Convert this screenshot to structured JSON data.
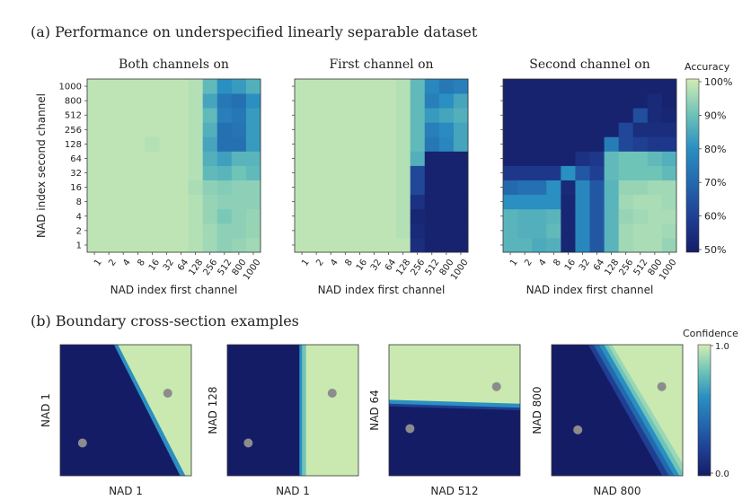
{
  "figure": {
    "panel_a_title": "(a) Performance on underspecified linearly separable dataset",
    "panel_b_title": "(b) Boundary cross-section examples"
  },
  "colors": {
    "low": "#151c66",
    "mid": "#2a8fc1",
    "high": "#c9e9b0",
    "dot": "#8c8c8c"
  },
  "chart_data": [
    {
      "type": "heatmap",
      "title": "Both channels on",
      "xlabel": "NAD index first channel",
      "ylabel": "NAD index second channel",
      "x": [
        "1",
        "2",
        "4",
        "8",
        "16",
        "32",
        "64",
        "128",
        "256",
        "512",
        "800",
        "1000"
      ],
      "y": [
        "1",
        "2",
        "4",
        "8",
        "16",
        "32",
        "64",
        "128",
        "256",
        "512",
        "800",
        "1000"
      ],
      "zlim": [
        50,
        100
      ],
      "z": [
        [
          98,
          98,
          98,
          98,
          98,
          98,
          98,
          97,
          95,
          93,
          94,
          95
        ],
        [
          98,
          98,
          98,
          98,
          98,
          98,
          98,
          97,
          95,
          93,
          93,
          94
        ],
        [
          98,
          98,
          98,
          98,
          98,
          98,
          98,
          97,
          94,
          91,
          93,
          94
        ],
        [
          98,
          98,
          98,
          98,
          98,
          98,
          98,
          97,
          94,
          93,
          93,
          93
        ],
        [
          98,
          98,
          98,
          98,
          98,
          98,
          98,
          96,
          93,
          92,
          93,
          93
        ],
        [
          98,
          98,
          98,
          98,
          98,
          98,
          98,
          97,
          88,
          87,
          90,
          88
        ],
        [
          98,
          98,
          98,
          98,
          98,
          98,
          98,
          97,
          86,
          83,
          87,
          87
        ],
        [
          98,
          98,
          98,
          98,
          97,
          98,
          98,
          97,
          84,
          72,
          72,
          82
        ],
        [
          98,
          98,
          98,
          98,
          98,
          98,
          98,
          97,
          86,
          72,
          73,
          82
        ],
        [
          98,
          98,
          98,
          98,
          98,
          98,
          98,
          97,
          88,
          76,
          74,
          82
        ],
        [
          98,
          98,
          98,
          98,
          98,
          98,
          98,
          97,
          84,
          74,
          72,
          80
        ],
        [
          98,
          98,
          98,
          98,
          98,
          98,
          98,
          97,
          88,
          80,
          82,
          86
        ]
      ],
      "colorbar": {
        "label": "Accuracy",
        "ticks": [
          "50%",
          "60%",
          "70%",
          "80%",
          "90%",
          "100%"
        ]
      }
    },
    {
      "type": "heatmap",
      "title": "First channel on",
      "xlabel": "NAD index first channel",
      "x": [
        "1",
        "2",
        "4",
        "8",
        "16",
        "32",
        "64",
        "128",
        "256",
        "512",
        "800",
        "1000"
      ],
      "y": [
        "1",
        "2",
        "4",
        "8",
        "16",
        "32",
        "64",
        "128",
        "256",
        "512",
        "800",
        "1000"
      ],
      "zlim": [
        50,
        100
      ],
      "z": [
        [
          98,
          98,
          98,
          98,
          98,
          98,
          98,
          98,
          55,
          52,
          52,
          52
        ],
        [
          98,
          98,
          98,
          98,
          98,
          98,
          98,
          97,
          54,
          52,
          52,
          52
        ],
        [
          98,
          98,
          98,
          98,
          98,
          98,
          98,
          97,
          53,
          52,
          52,
          52
        ],
        [
          98,
          98,
          98,
          98,
          98,
          98,
          98,
          97,
          56,
          52,
          52,
          52
        ],
        [
          98,
          98,
          98,
          98,
          98,
          98,
          98,
          97,
          62,
          52,
          52,
          52
        ],
        [
          98,
          98,
          98,
          98,
          98,
          98,
          98,
          97,
          62,
          52,
          52,
          52
        ],
        [
          98,
          98,
          98,
          98,
          98,
          98,
          98,
          97,
          86,
          52,
          52,
          52
        ],
        [
          98,
          98,
          98,
          98,
          98,
          98,
          98,
          97,
          88,
          74,
          78,
          84
        ],
        [
          98,
          98,
          98,
          98,
          98,
          98,
          98,
          97,
          88,
          76,
          79,
          84
        ],
        [
          98,
          98,
          98,
          98,
          98,
          98,
          98,
          97,
          88,
          82,
          84,
          86
        ],
        [
          98,
          98,
          98,
          98,
          98,
          98,
          98,
          97,
          88,
          76,
          80,
          84
        ],
        [
          98,
          98,
          98,
          98,
          98,
          98,
          98,
          97,
          88,
          78,
          74,
          76
        ]
      ]
    },
    {
      "type": "heatmap",
      "title": "Second channel on",
      "xlabel": "NAD index first channel",
      "x": [
        "1",
        "2",
        "4",
        "8",
        "16",
        "32",
        "64",
        "128",
        "256",
        "512",
        "800",
        "1000"
      ],
      "y": [
        "1",
        "2",
        "4",
        "8",
        "16",
        "32",
        "64",
        "128",
        "256",
        "512",
        "800",
        "1000"
      ],
      "zlim": [
        50,
        100
      ],
      "z": [
        [
          87,
          87,
          85,
          86,
          53,
          78,
          66,
          87,
          95,
          96,
          96,
          94
        ],
        [
          87,
          86,
          86,
          88,
          53,
          78,
          66,
          87,
          95,
          96,
          96,
          95
        ],
        [
          87,
          86,
          86,
          87,
          53,
          78,
          66,
          87,
          94,
          95,
          96,
          96
        ],
        [
          80,
          80,
          80,
          80,
          53,
          78,
          66,
          87,
          95,
          96,
          96,
          95
        ],
        [
          70,
          72,
          72,
          80,
          54,
          78,
          66,
          87,
          94,
          94,
          95,
          95
        ],
        [
          58,
          58,
          58,
          58,
          80,
          66,
          60,
          88,
          90,
          90,
          90,
          88
        ],
        [
          52,
          52,
          52,
          52,
          52,
          56,
          58,
          88,
          90,
          90,
          88,
          86
        ],
        [
          52,
          52,
          52,
          52,
          52,
          52,
          52,
          75,
          62,
          60,
          58,
          58
        ],
        [
          52,
          52,
          52,
          52,
          52,
          52,
          52,
          52,
          62,
          55,
          55,
          55
        ],
        [
          52,
          52,
          52,
          52,
          52,
          52,
          52,
          52,
          52,
          64,
          54,
          53
        ],
        [
          52,
          52,
          52,
          52,
          52,
          52,
          52,
          52,
          52,
          52,
          54,
          52
        ],
        [
          52,
          52,
          52,
          52,
          52,
          52,
          52,
          52,
          52,
          52,
          52,
          52
        ]
      ]
    },
    {
      "type": "contour",
      "xlabel": "NAD 1",
      "ylabel": "NAD 1",
      "boundary": "diagonal",
      "points": 2
    },
    {
      "type": "contour",
      "xlabel": "NAD 1",
      "ylabel": "NAD 128",
      "boundary": "vertical",
      "points": 2
    },
    {
      "type": "contour",
      "xlabel": "NAD 512",
      "ylabel": "NAD 64",
      "boundary": "horizontal",
      "points": 2
    },
    {
      "type": "contour",
      "xlabel": "NAD 800",
      "ylabel": "NAD 800",
      "boundary": "diagonal-wide",
      "points": 2,
      "colorbar": {
        "label": "Confidence",
        "ticks": [
          "0.0",
          "1.0"
        ]
      }
    }
  ]
}
